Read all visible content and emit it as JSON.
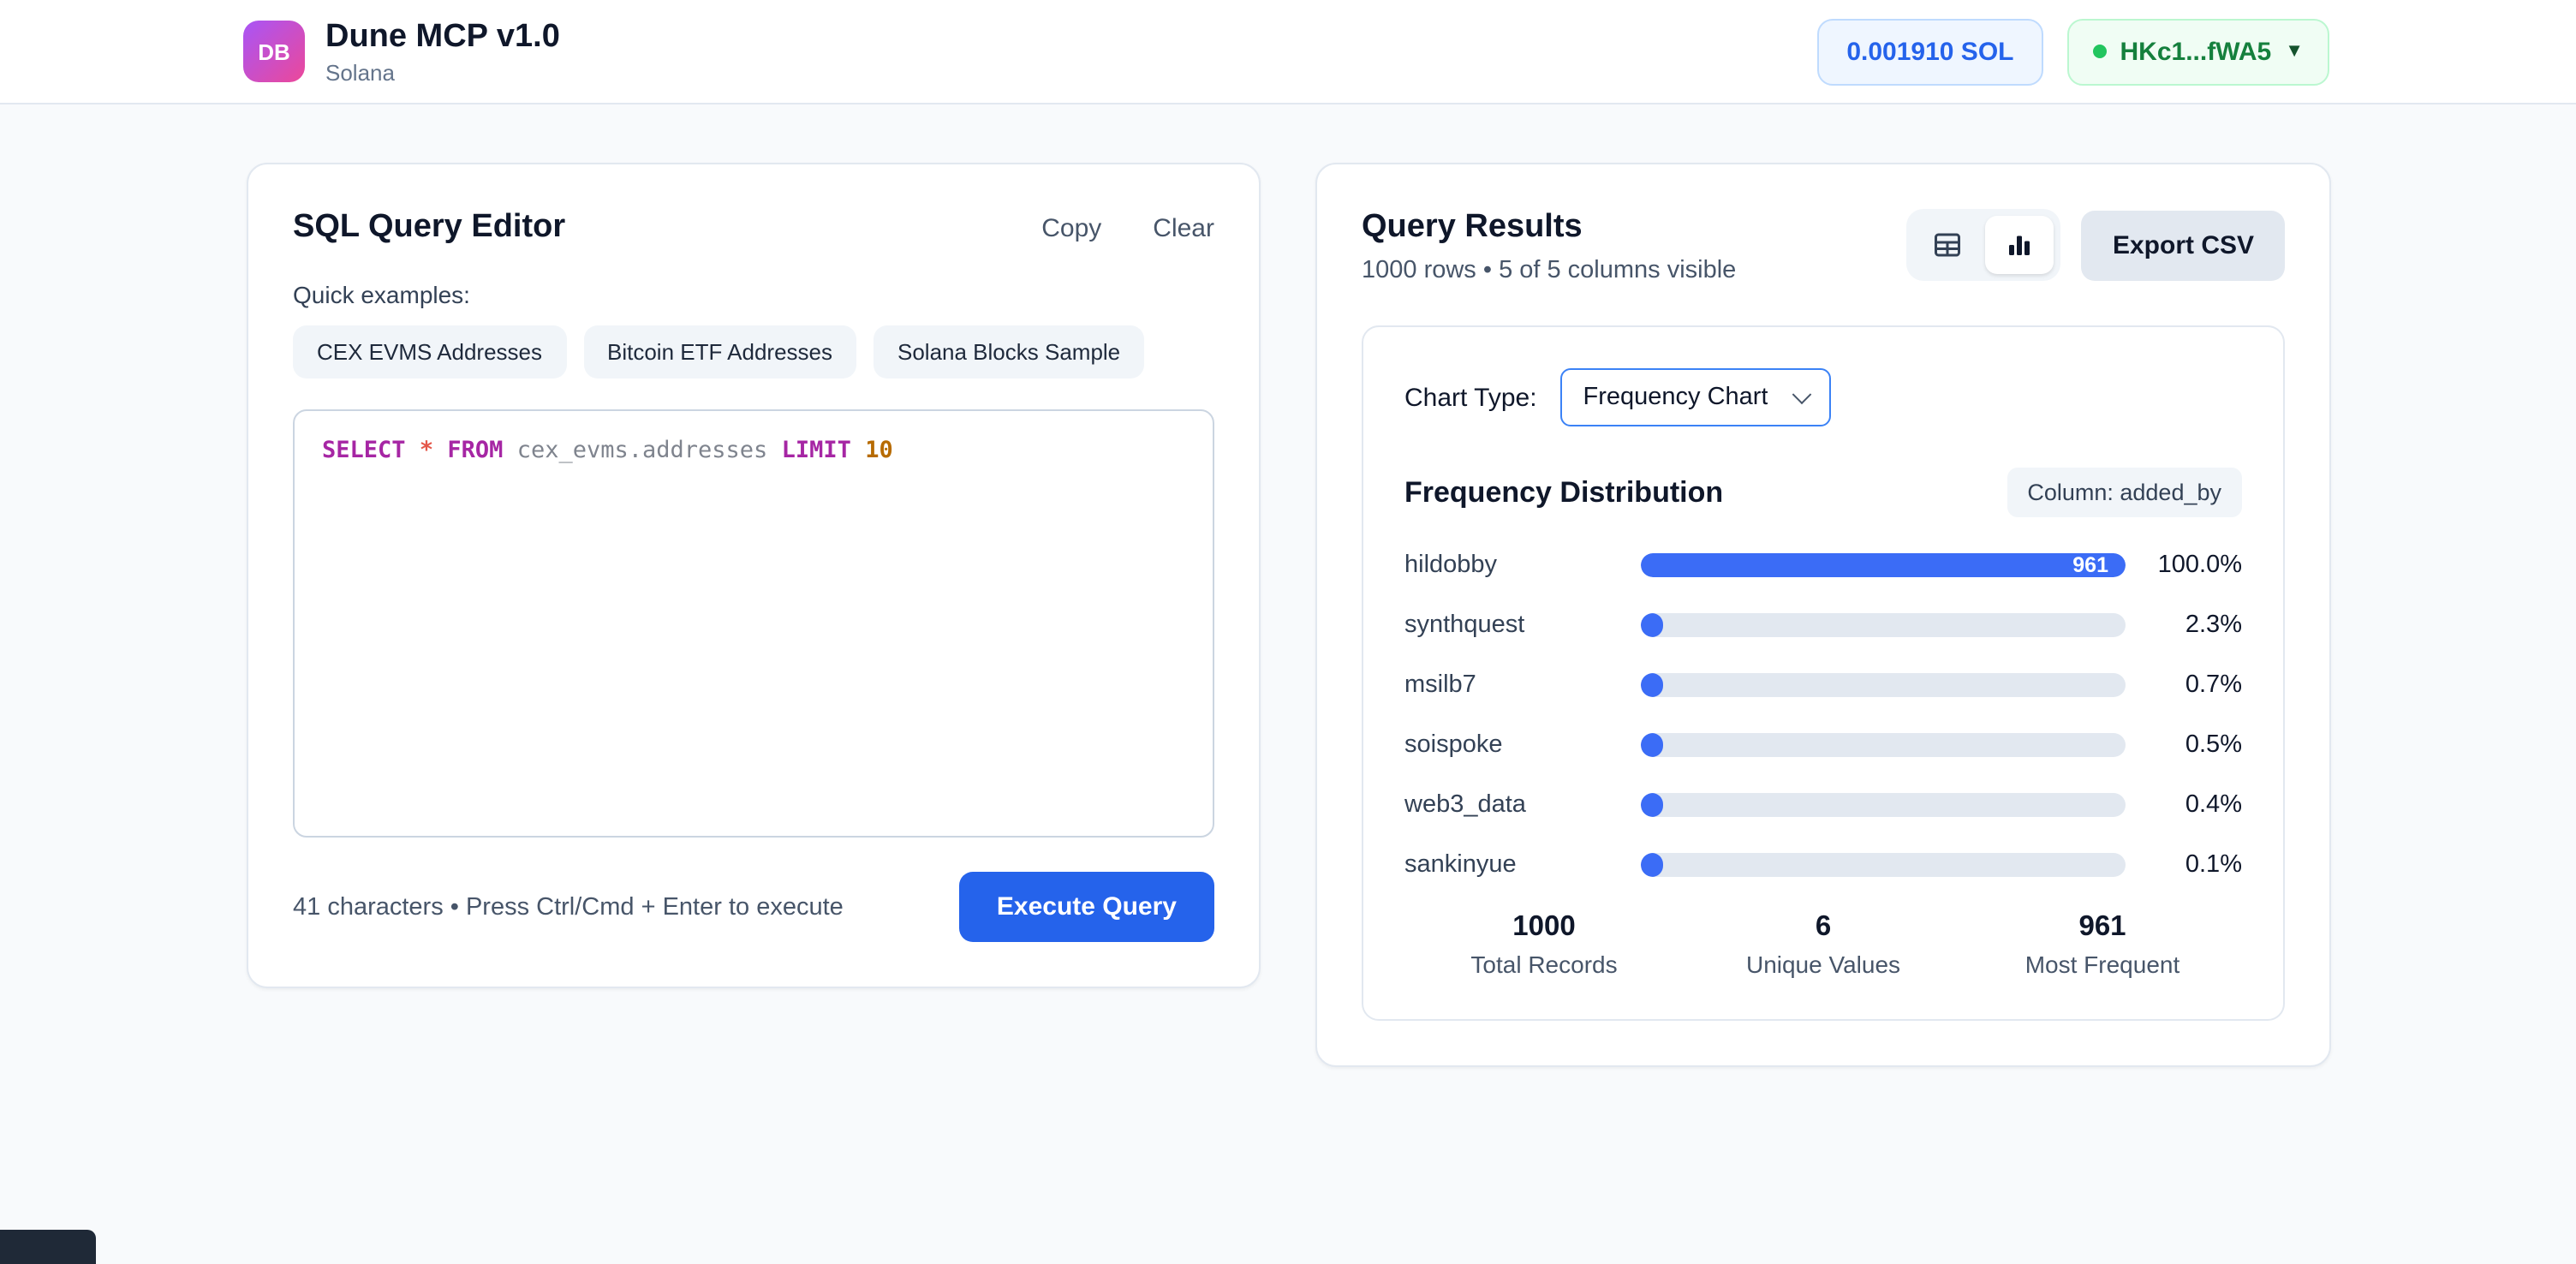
{
  "header": {
    "logo_text": "DB",
    "title": "Dune MCP v1.0",
    "subtitle": "Solana",
    "balance": "0.001910 SOL",
    "wallet": "HKc1...fWA5",
    "wallet_caret": "▼"
  },
  "editor": {
    "title": "SQL Query Editor",
    "copy_label": "Copy",
    "clear_label": "Clear",
    "quick_examples_label": "Quick examples:",
    "examples": [
      "CEX EVMS Addresses",
      "Bitcoin ETF Addresses",
      "Solana Blocks Sample"
    ],
    "query": "SELECT * FROM cex_evms.addresses LIMIT 10",
    "query_tokens": [
      {
        "text": "SELECT",
        "type": "keyword"
      },
      {
        "text": " ",
        "type": "plain"
      },
      {
        "text": "*",
        "type": "operator"
      },
      {
        "text": " ",
        "type": "plain"
      },
      {
        "text": "FROM",
        "type": "keyword"
      },
      {
        "text": " ",
        "type": "plain"
      },
      {
        "text": "cex_evms.addresses",
        "type": "identifier"
      },
      {
        "text": " ",
        "type": "plain"
      },
      {
        "text": "LIMIT",
        "type": "keyword"
      },
      {
        "text": " ",
        "type": "plain"
      },
      {
        "text": "10",
        "type": "number"
      }
    ],
    "footer_hint": "41 characters • Press Ctrl/Cmd + Enter to execute",
    "execute_label": "Execute Query"
  },
  "results": {
    "title": "Query Results",
    "subtitle": "1000 rows • 5 of 5 columns visible",
    "export_label": "Export CSV",
    "chart_type_label": "Chart Type:",
    "chart_type_value": "Frequency Chart",
    "distribution_title": "Frequency Distribution",
    "column_badge": "Column: added_by",
    "chart_data": {
      "type": "bar",
      "title": "Frequency Distribution",
      "column": "added_by",
      "categories": [
        "hildobby",
        "synthquest",
        "msilb7",
        "soispoke",
        "web3_data",
        "sankinyue"
      ],
      "values": [
        961,
        22,
        7,
        5,
        4,
        1
      ],
      "percent_labels": [
        "100.0%",
        "2.3%",
        "0.7%",
        "0.5%",
        "0.4%",
        "0.1%"
      ],
      "bar_value_labels": [
        "961",
        "",
        "",
        "",
        "",
        ""
      ],
      "max_value": 961,
      "orientation": "horizontal"
    },
    "stats": [
      {
        "value": "1000",
        "label": "Total Records"
      },
      {
        "value": "6",
        "label": "Unique Values"
      },
      {
        "value": "961",
        "label": "Most Frequent"
      }
    ]
  }
}
